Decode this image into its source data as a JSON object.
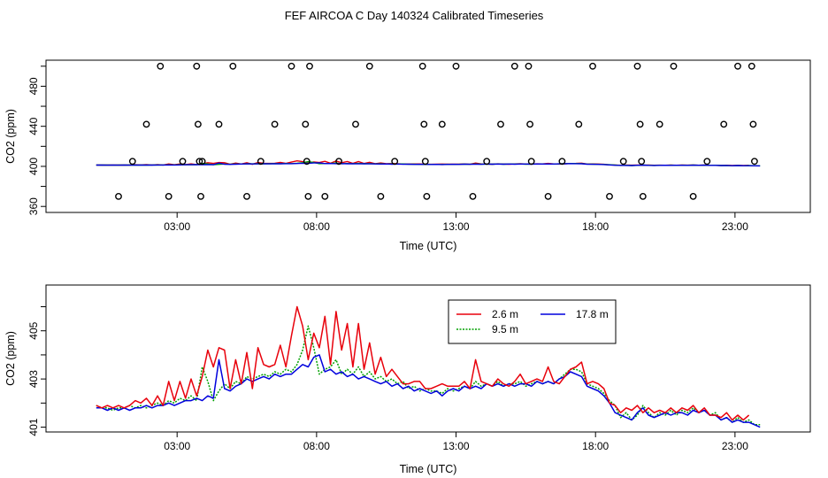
{
  "title": "FEF AIRCOA C  Day 140324  Calibrated Timeseries",
  "chart_data": [
    {
      "type": "scatter+line",
      "xlabel": "Time (UTC)",
      "ylabel": "CO2 (ppm)",
      "xlim": [
        -1.7,
        25.7
      ],
      "ylim": [
        354,
        506
      ],
      "x_ticks": [
        3,
        8,
        13,
        18,
        23
      ],
      "x_tick_labels": [
        "03:00",
        "08:00",
        "13:00",
        "18:00",
        "23:00"
      ],
      "y_ticks": [
        360,
        400,
        440,
        480
      ],
      "y_tick_labels": [
        "360",
        "400",
        "440",
        "480"
      ],
      "y_minor_ticks": [
        380,
        420,
        460,
        500
      ],
      "calibration_points": {
        "x": [
          0.9,
          1.4,
          1.9,
          2.4,
          2.7,
          3.2,
          3.7,
          3.75,
          3.8,
          3.85,
          3.9,
          4.5,
          5.0,
          5.5,
          6.0,
          6.5,
          7.1,
          7.6,
          7.65,
          7.7,
          7.75,
          8.3,
          8.8,
          9.4,
          9.9,
          10.3,
          10.8,
          11.8,
          11.85,
          11.9,
          11.95,
          12.5,
          13.0,
          13.6,
          14.1,
          14.6,
          15.1,
          15.6,
          15.65,
          15.7,
          16.3,
          16.8,
          17.4,
          17.9,
          18.5,
          19.0,
          19.5,
          19.6,
          19.65,
          19.7,
          20.3,
          20.8,
          21.5,
          22.0,
          22.6,
          23.1,
          23.6,
          23.65,
          23.7
        ],
        "y": [
          370,
          405,
          442,
          500,
          370,
          405,
          500,
          442,
          405,
          370,
          405,
          442,
          500,
          370,
          405,
          442,
          500,
          442,
          405,
          370,
          500,
          370,
          405,
          442,
          500,
          370,
          405,
          500,
          442,
          405,
          370,
          442,
          500,
          370,
          405,
          442,
          500,
          500,
          442,
          405,
          370,
          405,
          442,
          500,
          370,
          405,
          500,
          442,
          405,
          370,
          442,
          500,
          370,
          405,
          442,
          500,
          500,
          442,
          405
        ]
      },
      "legend": "none"
    },
    {
      "type": "line",
      "xlabel": "Time (UTC)",
      "ylabel": "CO2 (ppm)",
      "xlim": [
        -1.7,
        25.7
      ],
      "ylim": [
        400.8,
        406.9
      ],
      "x_ticks": [
        3,
        8,
        13,
        18,
        23
      ],
      "x_tick_labels": [
        "03:00",
        "08:00",
        "13:00",
        "18:00",
        "23:00"
      ],
      "y_ticks": [
        401,
        403,
        405
      ],
      "y_tick_labels": [
        "401",
        "403",
        "405"
      ],
      "y_minor_ticks": [
        402,
        404,
        406
      ],
      "legend_position": "top-center",
      "series": [
        {
          "name": "2.6 m",
          "color": "#e8000b",
          "x": [
            0.1,
            0.3,
            0.5,
            0.7,
            0.9,
            1.1,
            1.3,
            1.5,
            1.7,
            1.9,
            2.1,
            2.3,
            2.5,
            2.7,
            2.9,
            3.1,
            3.3,
            3.5,
            3.7,
            3.9,
            4.1,
            4.3,
            4.5,
            4.7,
            4.9,
            5.1,
            5.3,
            5.5,
            5.7,
            5.9,
            6.1,
            6.3,
            6.5,
            6.7,
            6.9,
            7.1,
            7.3,
            7.5,
            7.7,
            7.9,
            8.1,
            8.3,
            8.5,
            8.7,
            8.9,
            9.1,
            9.3,
            9.5,
            9.7,
            9.9,
            10.1,
            10.3,
            10.5,
            10.7,
            10.9,
            11.1,
            11.3,
            11.5,
            11.7,
            11.9,
            12.1,
            12.3,
            12.5,
            12.7,
            12.9,
            13.1,
            13.3,
            13.5,
            13.7,
            13.9,
            14.1,
            14.3,
            14.5,
            14.7,
            14.9,
            15.1,
            15.3,
            15.5,
            15.7,
            15.9,
            16.1,
            16.3,
            16.5,
            16.7,
            16.9,
            17.1,
            17.3,
            17.5,
            17.7,
            17.9,
            18.1,
            18.3,
            18.5,
            18.7,
            18.9,
            19.1,
            19.3,
            19.5,
            19.7,
            19.9,
            20.1,
            20.3,
            20.5,
            20.7,
            20.9,
            21.1,
            21.3,
            21.5,
            21.7,
            21.9,
            22.1,
            22.3,
            22.5,
            22.7,
            22.9,
            23.1,
            23.3,
            23.5
          ],
          "y": [
            401.9,
            401.8,
            401.9,
            401.8,
            401.9,
            401.8,
            401.9,
            402.1,
            402.0,
            402.2,
            401.9,
            402.3,
            401.9,
            402.9,
            402.1,
            402.9,
            402.2,
            403.0,
            402.3,
            403.1,
            404.2,
            403.5,
            404.3,
            404.2,
            402.6,
            403.8,
            402.8,
            404.1,
            402.6,
            404.3,
            403.6,
            403.5,
            403.6,
            404.4,
            403.5,
            404.8,
            406.0,
            405.2,
            403.8,
            404.9,
            404.3,
            405.6,
            403.6,
            405.8,
            404.2,
            405.3,
            403.5,
            405.3,
            403.4,
            404.5,
            403.2,
            403.9,
            403.1,
            403.4,
            403.1,
            402.8,
            402.8,
            402.9,
            402.9,
            402.6,
            402.6,
            402.7,
            402.8,
            402.7,
            402.7,
            402.7,
            402.9,
            402.6,
            403.8,
            402.9,
            402.8,
            402.7,
            403.0,
            402.8,
            402.7,
            402.9,
            403.2,
            402.8,
            402.9,
            403.0,
            402.9,
            403.5,
            402.9,
            402.8,
            403.1,
            403.4,
            403.5,
            403.7,
            402.8,
            402.9,
            402.8,
            402.6,
            402.0,
            401.9,
            401.6,
            401.8,
            401.7,
            401.9,
            401.6,
            401.8,
            401.6,
            401.7,
            401.6,
            401.8,
            401.6,
            401.8,
            401.7,
            401.9,
            401.6,
            401.8,
            401.5,
            401.5,
            401.4,
            401.6,
            401.3,
            401.5,
            401.3,
            401.5
          ]
        },
        {
          "name": "9.5 m",
          "color": "#00a000",
          "x": [
            0.1,
            0.3,
            0.5,
            0.7,
            0.9,
            1.1,
            1.3,
            1.5,
            1.7,
            1.9,
            2.1,
            2.3,
            2.5,
            2.7,
            2.9,
            3.1,
            3.3,
            3.5,
            3.7,
            3.9,
            4.1,
            4.3,
            4.5,
            4.7,
            4.9,
            5.1,
            5.3,
            5.5,
            5.7,
            5.9,
            6.1,
            6.3,
            6.5,
            6.7,
            6.9,
            7.1,
            7.3,
            7.5,
            7.7,
            7.9,
            8.1,
            8.3,
            8.5,
            8.7,
            8.9,
            9.1,
            9.3,
            9.5,
            9.7,
            9.9,
            10.1,
            10.3,
            10.5,
            10.7,
            10.9,
            11.1,
            11.3,
            11.5,
            11.7,
            11.9,
            12.1,
            12.3,
            12.5,
            12.7,
            12.9,
            13.1,
            13.3,
            13.5,
            13.7,
            13.9,
            14.1,
            14.3,
            14.5,
            14.7,
            14.9,
            15.1,
            15.3,
            15.5,
            15.7,
            15.9,
            16.1,
            16.3,
            16.5,
            16.7,
            16.9,
            17.1,
            17.3,
            17.5,
            17.7,
            17.9,
            18.1,
            18.3,
            18.5,
            18.7,
            18.9,
            19.1,
            19.3,
            19.5,
            19.7,
            19.9,
            20.1,
            20.3,
            20.5,
            20.7,
            20.9,
            21.1,
            21.3,
            21.5,
            21.7,
            21.9,
            22.1,
            22.3,
            22.5,
            22.7,
            22.9,
            23.1,
            23.3,
            23.5,
            23.7,
            23.9
          ],
          "y": [
            401.9,
            401.8,
            401.8,
            401.7,
            401.8,
            401.8,
            401.9,
            401.8,
            401.9,
            401.8,
            401.9,
            402.0,
            401.9,
            402.1,
            402.0,
            402.2,
            402.1,
            402.3,
            402.1,
            403.5,
            402.9,
            402.1,
            402.5,
            402.8,
            402.6,
            402.9,
            402.8,
            403.1,
            403.0,
            403.1,
            403.2,
            403.1,
            403.3,
            403.2,
            403.4,
            403.3,
            403.6,
            404.2,
            405.2,
            404.3,
            403.2,
            403.4,
            403.5,
            403.8,
            403.2,
            403.4,
            403.2,
            403.5,
            403.1,
            403.3,
            403.0,
            403.1,
            402.9,
            403.0,
            402.8,
            402.9,
            402.6,
            402.7,
            402.5,
            402.6,
            402.5,
            402.5,
            402.4,
            402.6,
            402.5,
            402.6,
            402.7,
            402.6,
            402.9,
            402.7,
            402.8,
            402.7,
            402.9,
            402.7,
            402.8,
            402.8,
            402.9,
            402.7,
            402.8,
            402.9,
            402.8,
            402.9,
            402.8,
            403.0,
            403.2,
            403.4,
            403.4,
            403.3,
            402.8,
            402.7,
            402.6,
            402.4,
            402.1,
            401.9,
            401.4,
            401.6,
            401.3,
            401.5,
            401.9,
            401.6,
            401.4,
            401.6,
            401.5,
            401.7,
            401.5,
            401.7,
            401.6,
            401.8,
            401.6,
            401.7,
            401.5,
            401.6,
            401.3,
            401.4,
            401.2,
            401.4,
            401.2,
            401.3,
            401.1,
            401.1
          ]
        },
        {
          "name": "17.8 m",
          "color": "#0000dd",
          "x": [
            0.1,
            0.3,
            0.5,
            0.7,
            0.9,
            1.1,
            1.3,
            1.5,
            1.7,
            1.9,
            2.1,
            2.3,
            2.5,
            2.7,
            2.9,
            3.1,
            3.3,
            3.5,
            3.7,
            3.9,
            4.1,
            4.3,
            4.5,
            4.7,
            4.9,
            5.1,
            5.3,
            5.5,
            5.7,
            5.9,
            6.1,
            6.3,
            6.5,
            6.7,
            6.9,
            7.1,
            7.3,
            7.5,
            7.7,
            7.9,
            8.1,
            8.3,
            8.5,
            8.7,
            8.9,
            9.1,
            9.3,
            9.5,
            9.7,
            9.9,
            10.1,
            10.3,
            10.5,
            10.7,
            10.9,
            11.1,
            11.3,
            11.5,
            11.7,
            11.9,
            12.1,
            12.3,
            12.5,
            12.7,
            12.9,
            13.1,
            13.3,
            13.5,
            13.7,
            13.9,
            14.1,
            14.3,
            14.5,
            14.7,
            14.9,
            15.1,
            15.3,
            15.5,
            15.7,
            15.9,
            16.1,
            16.3,
            16.5,
            16.7,
            16.9,
            17.1,
            17.3,
            17.5,
            17.7,
            17.9,
            18.1,
            18.3,
            18.5,
            18.7,
            18.9,
            19.1,
            19.3,
            19.5,
            19.7,
            19.9,
            20.1,
            20.3,
            20.5,
            20.7,
            20.9,
            21.1,
            21.3,
            21.5,
            21.7,
            21.9,
            22.1,
            22.3,
            22.5,
            22.7,
            22.9,
            23.1,
            23.3,
            23.5,
            23.7,
            23.9
          ],
          "y": [
            401.8,
            401.8,
            401.7,
            401.8,
            401.7,
            401.8,
            401.7,
            401.8,
            401.8,
            401.9,
            401.8,
            401.9,
            401.9,
            402.0,
            401.9,
            402.0,
            402.1,
            402.1,
            402.2,
            402.1,
            402.3,
            402.2,
            403.8,
            402.6,
            402.5,
            402.7,
            402.8,
            403.0,
            402.9,
            403.0,
            403.1,
            403.0,
            403.2,
            403.1,
            403.2,
            403.2,
            403.4,
            403.6,
            403.5,
            403.9,
            404.0,
            403.3,
            403.4,
            403.2,
            403.3,
            403.1,
            403.2,
            403.0,
            403.1,
            403.0,
            402.9,
            402.8,
            402.9,
            402.7,
            402.8,
            402.6,
            402.7,
            402.5,
            402.6,
            402.5,
            402.4,
            402.5,
            402.3,
            402.5,
            402.6,
            402.5,
            402.7,
            402.6,
            402.7,
            402.6,
            402.8,
            402.7,
            402.8,
            402.7,
            402.8,
            402.7,
            402.8,
            402.8,
            402.7,
            402.9,
            402.8,
            402.9,
            402.8,
            403.0,
            403.1,
            403.3,
            403.2,
            403.1,
            402.7,
            402.6,
            402.5,
            402.3,
            402.0,
            401.6,
            401.5,
            401.4,
            401.3,
            401.6,
            401.8,
            401.5,
            401.4,
            401.5,
            401.6,
            401.5,
            401.6,
            401.6,
            401.5,
            401.7,
            401.6,
            401.7,
            401.5,
            401.5,
            401.3,
            401.4,
            401.2,
            401.3,
            401.2,
            401.2,
            401.1,
            401.0
          ]
        }
      ]
    }
  ]
}
